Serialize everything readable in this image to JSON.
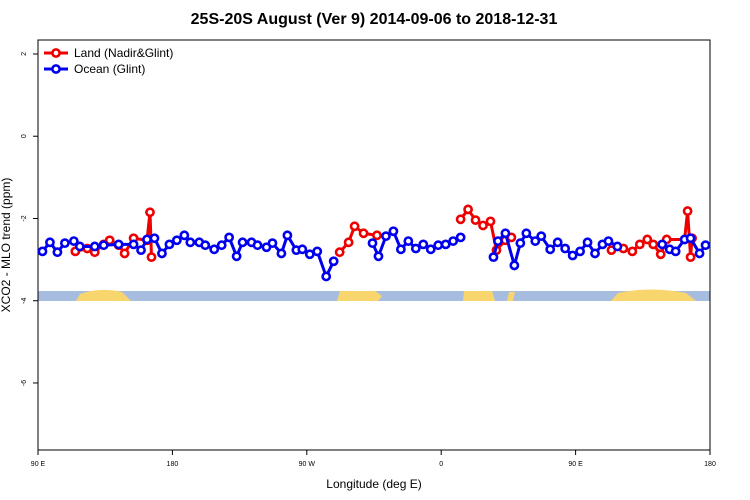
{
  "chart_data": {
    "type": "line",
    "title": "25S-20S August (Ver 9)   2014-09-06 to 2018-12-31",
    "x_label": "Longitude (deg E)",
    "y_label": "XCO2 - MLO trend (ppm)",
    "xlim": [
      90,
      540
    ],
    "ylim": [
      -7.63,
      2.34
    ],
    "xticks": [
      {
        "value": 90,
        "label": "90 E"
      },
      180,
      {
        "value": 270,
        "label": "90 W"
      },
      {
        "value": 360,
        "label": "0"
      },
      {
        "value": 450,
        "label": "90 E"
      },
      {
        "value": 540,
        "label": "180"
      }
    ],
    "yticks": [
      2,
      0,
      -2,
      -4,
      -6
    ],
    "legend": "upper left",
    "series": [
      {
        "name": "Land (Nadir&Glint)",
        "color": "#ee0000",
        "x": [
          115,
          123,
          128,
          134,
          138,
          144,
          148,
          154,
          163,
          165,
          166,
          null,
          292,
          298,
          302,
          308,
          317,
          null,
          373,
          378,
          383,
          388,
          393,
          397,
          403,
          407,
          null,
          474,
          482,
          488,
          493,
          498,
          502,
          507,
          511,
          523,
          525,
          527,
          528
        ],
        "values": [
          -2.8,
          -2.73,
          -2.82,
          -2.63,
          -2.53,
          -2.65,
          -2.85,
          -2.48,
          -2.53,
          -1.85,
          -2.94,
          null,
          -2.82,
          -2.58,
          -2.19,
          -2.36,
          -2.41,
          null,
          -2.02,
          -1.78,
          -2.04,
          -2.17,
          -2.07,
          -2.77,
          -2.53,
          -2.46,
          null,
          -2.77,
          -2.73,
          -2.8,
          -2.63,
          -2.51,
          -2.63,
          -2.87,
          -2.51,
          -2.51,
          -1.82,
          -2.94,
          -2.48
        ]
      },
      {
        "name": "Ocean (Glint)",
        "color": "#0000ee",
        "x": [
          93,
          98,
          103,
          108,
          114,
          118,
          128,
          134,
          144,
          154,
          159,
          163,
          168,
          173,
          178,
          183,
          188,
          192,
          198,
          202,
          208,
          213,
          218,
          223,
          227,
          233,
          237,
          243,
          247,
          253,
          257,
          263,
          267,
          272,
          277,
          283,
          288,
          null,
          314,
          318,
          323,
          328,
          333,
          338,
          343,
          348,
          353,
          358,
          363,
          368,
          373,
          null,
          395,
          398,
          403,
          409,
          413,
          417,
          423,
          427,
          433,
          438,
          443,
          448,
          453,
          458,
          463,
          468,
          472,
          478,
          null,
          508,
          513,
          517,
          523,
          527,
          533,
          537
        ],
        "values": [
          -2.8,
          -2.58,
          -2.82,
          -2.6,
          -2.55,
          -2.68,
          -2.68,
          -2.65,
          -2.63,
          -2.63,
          -2.77,
          -2.51,
          -2.48,
          -2.85,
          -2.63,
          -2.53,
          -2.41,
          -2.58,
          -2.58,
          -2.65,
          -2.75,
          -2.65,
          -2.46,
          -2.92,
          -2.58,
          -2.58,
          -2.65,
          -2.7,
          -2.6,
          -2.85,
          -2.41,
          -2.77,
          -2.75,
          -2.87,
          -2.8,
          -3.41,
          -3.04,
          null,
          -2.6,
          -2.92,
          -2.43,
          -2.31,
          -2.75,
          -2.55,
          -2.73,
          -2.63,
          -2.75,
          -2.65,
          -2.63,
          -2.55,
          -2.46,
          null,
          -2.94,
          -2.55,
          -2.36,
          -3.14,
          -2.6,
          -2.36,
          -2.55,
          -2.43,
          -2.75,
          -2.58,
          -2.73,
          -2.9,
          -2.8,
          -2.58,
          -2.85,
          -2.63,
          -2.55,
          -2.68,
          null,
          -2.63,
          -2.75,
          -2.8,
          -2.51,
          -2.48,
          -2.85,
          -2.65
        ]
      }
    ]
  }
}
